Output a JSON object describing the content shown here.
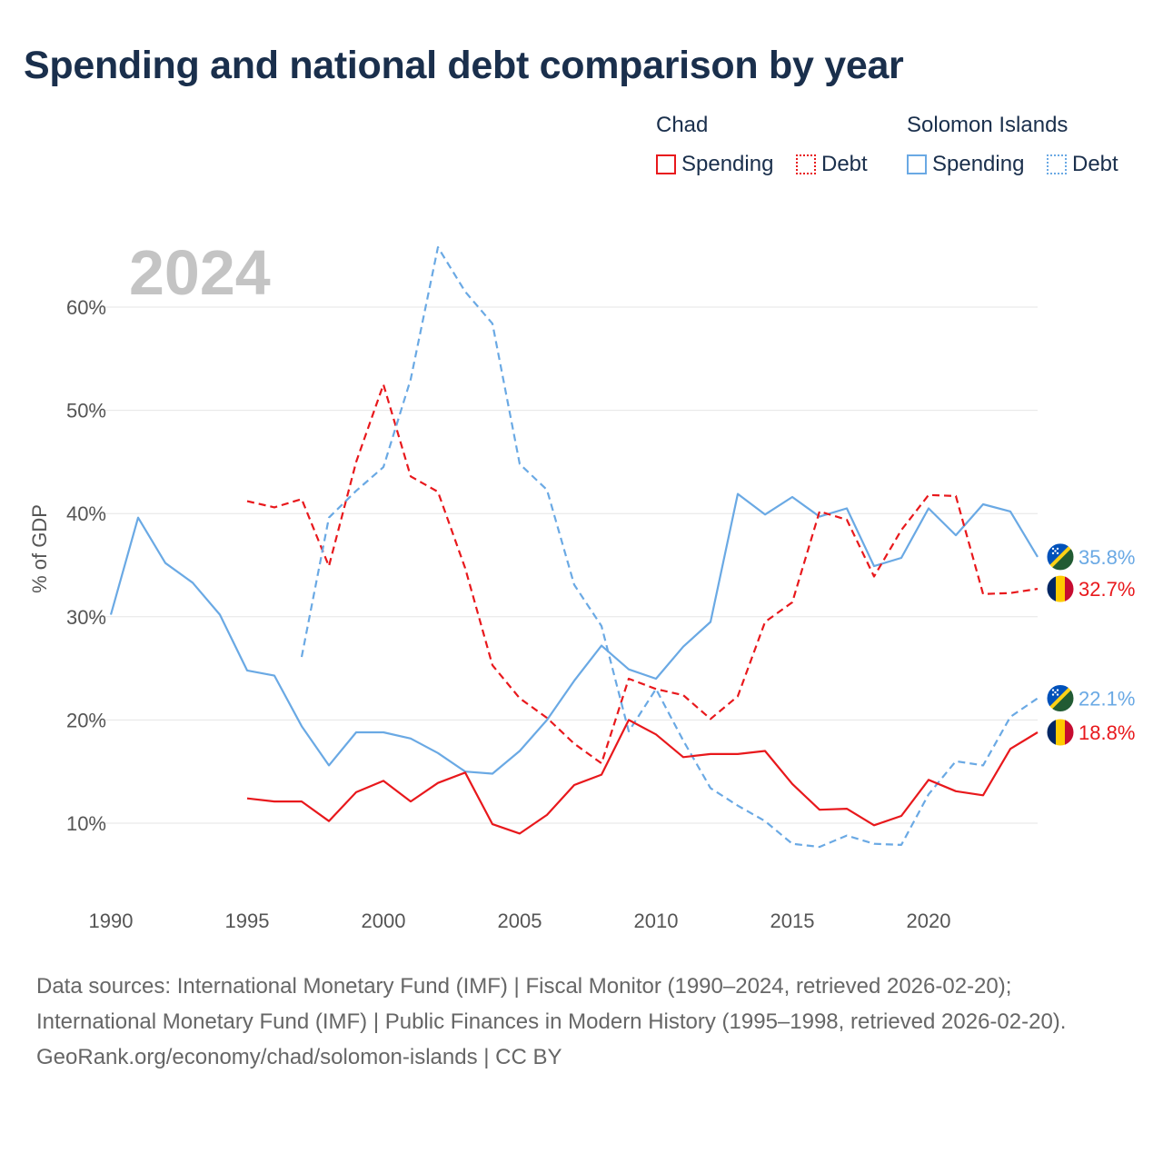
{
  "title": "Spending and national debt comparison by year",
  "year_label": "2024",
  "legend": {
    "groups": [
      {
        "country": "Chad",
        "color": "#e8181c",
        "spending_label": "Spending",
        "debt_label": "Debt"
      },
      {
        "country": "Solomon Islands",
        "color": "#6aa9e4",
        "spending_label": "Spending",
        "debt_label": "Debt"
      }
    ]
  },
  "chart_data": {
    "type": "line",
    "title": "Spending and national debt comparison by year",
    "xlabel": "",
    "ylabel": "% of GDP",
    "xlim": [
      1990,
      2024
    ],
    "ylim": [
      3,
      66
    ],
    "x_ticks": [
      1990,
      1995,
      2000,
      2005,
      2010,
      2015,
      2020
    ],
    "y_ticks": [
      10,
      20,
      30,
      40,
      50,
      60
    ],
    "y_tick_labels": [
      "10%",
      "20%",
      "30%",
      "40%",
      "50%",
      "60%"
    ],
    "grid": true,
    "series": [
      {
        "name": "Solomon Islands Spending",
        "country": "Solomon Islands",
        "kind": "Spending",
        "color": "#6aa9e4",
        "style": "solid",
        "end_label": "35.8%",
        "flag": "solomon-islands",
        "points": [
          [
            1990,
            30.2
          ],
          [
            1991,
            39.6
          ],
          [
            1992,
            35.2
          ],
          [
            1993,
            33.3
          ],
          [
            1994,
            30.2
          ],
          [
            1995,
            24.8
          ],
          [
            1996,
            24.3
          ],
          [
            1997,
            19.4
          ],
          [
            1998,
            15.6
          ],
          [
            1999,
            18.8
          ],
          [
            2000,
            18.8
          ],
          [
            2001,
            18.2
          ],
          [
            2002,
            16.8
          ],
          [
            2003,
            15.0
          ],
          [
            2004,
            14.8
          ],
          [
            2005,
            17.0
          ],
          [
            2006,
            20.0
          ],
          [
            2007,
            23.8
          ],
          [
            2008,
            27.2
          ],
          [
            2009,
            24.9
          ],
          [
            2010,
            24.0
          ],
          [
            2011,
            27.1
          ],
          [
            2012,
            29.5
          ],
          [
            2013,
            41.9
          ],
          [
            2014,
            39.9
          ],
          [
            2015,
            41.6
          ],
          [
            2016,
            39.7
          ],
          [
            2017,
            40.5
          ],
          [
            2018,
            34.9
          ],
          [
            2019,
            35.7
          ],
          [
            2020,
            40.5
          ],
          [
            2021,
            37.9
          ],
          [
            2022,
            40.9
          ],
          [
            2023,
            40.2
          ],
          [
            2024,
            35.8
          ]
        ]
      },
      {
        "name": "Chad Debt",
        "country": "Chad",
        "kind": "Debt",
        "color": "#e8181c",
        "style": "dashed",
        "end_label": "32.7%",
        "flag": "chad",
        "points": [
          [
            1995,
            41.2
          ],
          [
            1996,
            40.6
          ],
          [
            1997,
            41.4
          ],
          [
            1998,
            34.9
          ],
          [
            1999,
            45.0
          ],
          [
            2000,
            52.5
          ],
          [
            2001,
            43.6
          ],
          [
            2002,
            42.1
          ],
          [
            2003,
            34.7
          ],
          [
            2004,
            25.3
          ],
          [
            2005,
            22.1
          ],
          [
            2006,
            20.2
          ],
          [
            2007,
            17.7
          ],
          [
            2008,
            15.8
          ],
          [
            2009,
            24.0
          ],
          [
            2010,
            23.0
          ],
          [
            2011,
            22.4
          ],
          [
            2012,
            20.1
          ],
          [
            2013,
            22.3
          ],
          [
            2014,
            29.5
          ],
          [
            2015,
            31.4
          ],
          [
            2016,
            40.2
          ],
          [
            2017,
            39.4
          ],
          [
            2018,
            33.9
          ],
          [
            2019,
            38.4
          ],
          [
            2020,
            41.8
          ],
          [
            2021,
            41.7
          ],
          [
            2022,
            32.2
          ],
          [
            2023,
            32.3
          ],
          [
            2024,
            32.7
          ]
        ]
      },
      {
        "name": "Solomon Islands Debt",
        "country": "Solomon Islands",
        "kind": "Debt",
        "color": "#6aa9e4",
        "style": "dashed",
        "end_label": "22.1%",
        "flag": "solomon-islands",
        "points": [
          [
            1997,
            26.1
          ],
          [
            1998,
            39.6
          ],
          [
            1999,
            42.2
          ],
          [
            2000,
            44.5
          ],
          [
            2001,
            53.0
          ],
          [
            2002,
            65.8
          ],
          [
            2003,
            61.5
          ],
          [
            2004,
            58.4
          ],
          [
            2005,
            44.8
          ],
          [
            2006,
            42.3
          ],
          [
            2007,
            33.1
          ],
          [
            2008,
            29.1
          ],
          [
            2009,
            18.9
          ],
          [
            2010,
            23.0
          ],
          [
            2011,
            18.0
          ],
          [
            2012,
            13.4
          ],
          [
            2013,
            11.7
          ],
          [
            2014,
            10.2
          ],
          [
            2015,
            8.0
          ],
          [
            2016,
            7.7
          ],
          [
            2017,
            8.8
          ],
          [
            2018,
            8.0
          ],
          [
            2019,
            7.9
          ],
          [
            2020,
            12.8
          ],
          [
            2021,
            16.0
          ],
          [
            2022,
            15.6
          ],
          [
            2023,
            20.3
          ],
          [
            2024,
            22.1
          ]
        ]
      },
      {
        "name": "Chad Spending",
        "country": "Chad",
        "kind": "Spending",
        "color": "#e8181c",
        "style": "solid",
        "end_label": "18.8%",
        "flag": "chad",
        "points": [
          [
            1995,
            12.4
          ],
          [
            1996,
            12.1
          ],
          [
            1997,
            12.1
          ],
          [
            1998,
            10.2
          ],
          [
            1999,
            13.0
          ],
          [
            2000,
            14.1
          ],
          [
            2001,
            12.1
          ],
          [
            2002,
            13.9
          ],
          [
            2003,
            14.9
          ],
          [
            2004,
            9.9
          ],
          [
            2005,
            9.0
          ],
          [
            2006,
            10.8
          ],
          [
            2007,
            13.7
          ],
          [
            2008,
            14.7
          ],
          [
            2009,
            20.0
          ],
          [
            2010,
            18.6
          ],
          [
            2011,
            16.4
          ],
          [
            2012,
            16.7
          ],
          [
            2013,
            16.7
          ],
          [
            2014,
            17.0
          ],
          [
            2015,
            13.8
          ],
          [
            2016,
            11.3
          ],
          [
            2017,
            11.4
          ],
          [
            2018,
            9.8
          ],
          [
            2019,
            10.7
          ],
          [
            2020,
            14.2
          ],
          [
            2021,
            13.1
          ],
          [
            2022,
            12.7
          ],
          [
            2023,
            17.2
          ],
          [
            2024,
            18.8
          ]
        ]
      }
    ]
  },
  "source": {
    "line1": "Data sources: International Monetary Fund (IMF) | Fiscal Monitor (1990–2024, retrieved 2026-02-20); International Monetary Fund (IMF) | Public Finances in Modern History (1995–1998, retrieved 2026-02-20).",
    "line2": "GeoRank.org/economy/chad/solomon-islands | CC BY"
  }
}
